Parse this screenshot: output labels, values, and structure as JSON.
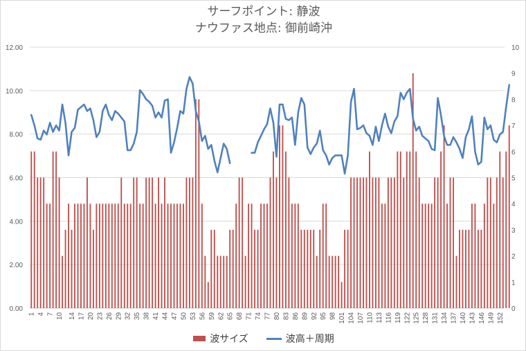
{
  "chart_data": {
    "type": "bar+line",
    "title": "サーフポイント: 静波",
    "subtitle": "ナウファス地点: 御前崎沖",
    "x": {
      "categories_count": 153,
      "tick_labels": [
        "1",
        "4",
        "7",
        "10",
        "14",
        "17",
        "20",
        "23",
        "26",
        "29",
        "32",
        "35",
        "38",
        "41",
        "44",
        "47",
        "50",
        "53",
        "56",
        "59",
        "62",
        "65",
        "68",
        "71",
        "74",
        "77",
        "80",
        "83",
        "86",
        "89",
        "92",
        "95",
        "98",
        "101",
        "104",
        "107",
        "110",
        "113",
        "116",
        "119",
        "122",
        "125",
        "128",
        "131",
        "134",
        "137",
        "140",
        "143",
        "146",
        "149",
        "152"
      ]
    },
    "y_left": {
      "min": 0,
      "max": 12,
      "step": 2,
      "tick_labels": [
        "0.00",
        "2.00",
        "4.00",
        "6.00",
        "8.00",
        "10.00",
        "12.00"
      ]
    },
    "y_right": {
      "min": 0,
      "max": 10,
      "step": 1,
      "tick_labels": [
        "0",
        "1",
        "2",
        "3",
        "4",
        "5",
        "6",
        "7",
        "8",
        "9",
        "10"
      ]
    },
    "grid": "horizontal",
    "legend_position": "bottom",
    "series": [
      {
        "name": "波サイズ",
        "type": "bar",
        "axis": "left",
        "color": "#c0504d",
        "values": [
          7.2,
          7.2,
          6.0,
          6.0,
          6.0,
          4.8,
          4.8,
          7.2,
          7.2,
          6.0,
          2.4,
          3.6,
          4.8,
          3.6,
          4.8,
          4.8,
          4.8,
          4.8,
          6.0,
          4.8,
          3.6,
          4.8,
          4.8,
          4.8,
          4.8,
          4.8,
          4.8,
          4.8,
          4.8,
          6.0,
          4.8,
          4.8,
          4.8,
          6.0,
          6.0,
          4.8,
          4.8,
          6.0,
          6.0,
          6.0,
          4.8,
          6.0,
          4.8,
          6.0,
          4.8,
          4.8,
          4.8,
          4.8,
          4.8,
          4.8,
          6.0,
          6.0,
          6.0,
          9.6,
          9.6,
          4.8,
          2.4,
          1.2,
          3.6,
          3.6,
          2.4,
          2.4,
          2.4,
          2.4,
          3.6,
          3.6,
          4.8,
          6.0,
          6.0,
          2.4,
          4.8,
          4.8,
          3.6,
          3.6,
          4.8,
          4.8,
          4.8,
          6.0,
          7.2,
          6.0,
          8.4,
          8.4,
          7.2,
          6.0,
          4.8,
          4.8,
          4.8,
          3.6,
          3.6,
          3.6,
          3.6,
          3.6,
          2.4,
          3.6,
          4.8,
          4.8,
          2.4,
          2.4,
          2.4,
          2.4,
          1.2,
          3.6,
          3.6,
          6.0,
          6.0,
          6.0,
          6.0,
          6.0,
          6.0,
          7.2,
          6.0,
          6.0,
          6.0,
          4.8,
          4.8,
          6.0,
          6.0,
          6.0,
          7.2,
          7.2,
          6.0,
          7.2,
          7.2,
          10.8,
          7.2,
          6.0,
          4.8,
          4.8,
          4.8,
          4.8,
          6.0,
          6.0,
          7.2,
          8.4,
          4.8,
          6.0,
          6.0,
          2.4,
          3.6,
          3.6,
          3.6,
          3.6,
          4.8,
          4.8,
          3.6,
          3.6,
          4.8,
          6.0,
          6.0,
          4.8,
          6.0,
          7.2,
          6.0,
          7.2,
          8.4
        ]
      },
      {
        "name": "波高＋周期",
        "type": "line",
        "axis": "right",
        "color": "#4f81bd",
        "values": [
          7.4,
          7.0,
          6.5,
          6.45,
          6.8,
          6.65,
          7.1,
          6.75,
          7.0,
          6.8,
          7.8,
          7.1,
          5.85,
          6.75,
          6.9,
          7.6,
          7.7,
          7.8,
          7.55,
          7.65,
          7.2,
          6.55,
          6.75,
          7.55,
          7.8,
          7.4,
          7.2,
          7.55,
          7.45,
          7.3,
          7.15,
          6.05,
          6.05,
          6.3,
          6.75,
          8.35,
          8.2,
          8.0,
          7.9,
          7.75,
          7.3,
          7.5,
          7.3,
          7.95,
          8.0,
          5.95,
          6.35,
          6.9,
          7.55,
          7.45,
          8.4,
          8.85,
          8.6,
          7.55,
          7.15,
          6.4,
          6.6,
          6.1,
          6.25,
          5.65,
          5.2,
          5.75,
          6.3,
          6.1,
          5.55,
          null,
          null,
          null,
          null,
          null,
          null,
          5.95,
          5.95,
          6.35,
          6.6,
          6.85,
          7.05,
          7.65,
          7.1,
          5.8,
          7.8,
          7.8,
          7.25,
          7.2,
          7.3,
          6.25,
          7.5,
          8.05,
          7.8,
          6.15,
          5.9,
          6.15,
          6.3,
          6.8,
          6.05,
          5.85,
          5.5,
          5.75,
          5.85,
          5.85,
          5.85,
          5.15,
          5.85,
          7.9,
          8.4,
          6.85,
          6.9,
          7.0,
          6.7,
          6.6,
          6.25,
          6.95,
          6.4,
          7.0,
          7.45,
          6.95,
          6.7,
          7.15,
          7.35,
          8.25,
          8.0,
          8.25,
          8.4,
          7.25,
          6.8,
          6.95,
          6.6,
          6.5,
          6.4,
          6.1,
          6.05,
          8.05,
          7.4,
          6.6,
          6.25,
          6.25,
          6.55,
          6.35,
          6.1,
          5.75,
          6.55,
          6.85,
          7.35,
          6.0,
          5.5,
          5.6,
          7.3,
          6.85,
          7.0,
          6.45,
          6.35,
          6.65,
          6.75,
          7.7,
          8.55
        ]
      }
    ]
  },
  "legend": {
    "bar_label": "波サイズ",
    "line_label": "波高＋周期"
  }
}
